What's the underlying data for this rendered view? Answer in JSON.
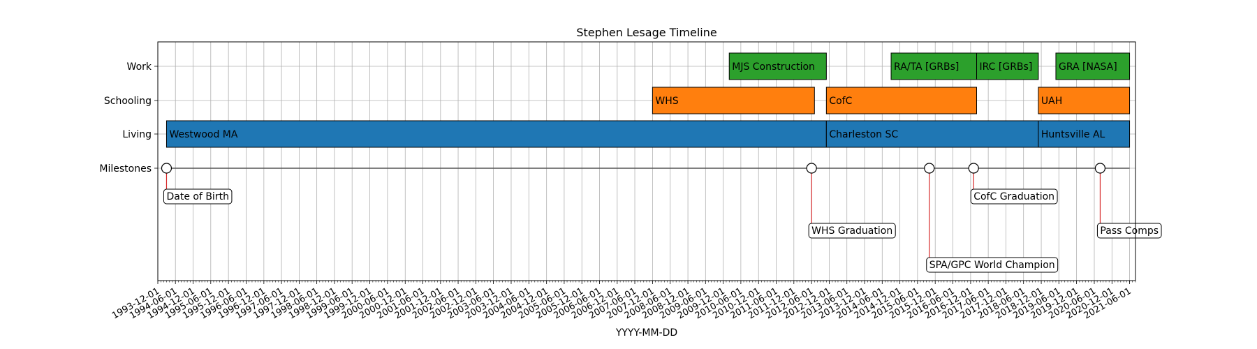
{
  "chart_data": {
    "type": "timeline",
    "title": "Stephen Lesage Timeline",
    "xlabel": "YYYY-MM-DD",
    "ylabel": "",
    "grid": true,
    "xlim": [
      "1993-12-01",
      "2021-08-01"
    ],
    "x_ticks": [
      "1993-12-01",
      "1994-06-01",
      "1994-12-01",
      "1995-06-01",
      "1995-12-01",
      "1996-06-01",
      "1996-12-01",
      "1997-06-01",
      "1997-12-01",
      "1998-06-01",
      "1998-12-01",
      "1999-06-01",
      "1999-12-01",
      "2000-06-01",
      "2000-12-01",
      "2001-06-01",
      "2001-12-01",
      "2002-06-01",
      "2002-12-01",
      "2003-06-01",
      "2003-12-01",
      "2004-06-01",
      "2004-12-01",
      "2005-06-01",
      "2005-12-01",
      "2006-06-01",
      "2006-12-01",
      "2007-06-01",
      "2007-12-01",
      "2008-06-01",
      "2008-12-01",
      "2009-06-01",
      "2009-12-01",
      "2010-06-01",
      "2010-12-01",
      "2011-06-01",
      "2011-12-01",
      "2012-06-01",
      "2012-12-01",
      "2013-06-01",
      "2013-12-01",
      "2014-06-01",
      "2014-12-01",
      "2015-06-01",
      "2015-12-01",
      "2016-06-01",
      "2016-12-01",
      "2017-06-01",
      "2017-12-01",
      "2018-06-01",
      "2018-12-01",
      "2019-06-01",
      "2019-12-01",
      "2020-06-01",
      "2020-12-01",
      "2021-06-01"
    ],
    "rows": [
      "Milestones",
      "Living",
      "Schooling",
      "Work"
    ],
    "colors": {
      "Living": "#1f77b4",
      "Schooling": "#ff7f0e",
      "Work": "#2ca02c",
      "stem": "#d62728",
      "line": "#555555"
    },
    "bars": [
      {
        "row": "Work",
        "label": "MJS Construction",
        "start": "2010-02-01",
        "end": "2012-11-01"
      },
      {
        "row": "Work",
        "label": "RA/TA [GRBs]",
        "start": "2014-09-01",
        "end": "2017-02-01"
      },
      {
        "row": "Work",
        "label": "IRC [GRBs]",
        "start": "2017-02-01",
        "end": "2018-11-01"
      },
      {
        "row": "Work",
        "label": "GRA [NASA]",
        "start": "2019-05-01",
        "end": "2021-06-01"
      },
      {
        "row": "Schooling",
        "label": "WHS",
        "start": "2007-12-01",
        "end": "2012-07-01"
      },
      {
        "row": "Schooling",
        "label": "CofC",
        "start": "2012-11-01",
        "end": "2017-02-01"
      },
      {
        "row": "Schooling",
        "label": "UAH",
        "start": "2018-11-01",
        "end": "2021-06-01"
      },
      {
        "row": "Living",
        "label": "Westwood MA",
        "start": "1994-03-01",
        "end": "2012-11-01"
      },
      {
        "row": "Living",
        "label": "Charleston SC",
        "start": "2012-11-01",
        "end": "2018-11-01"
      },
      {
        "row": "Living",
        "label": "Huntsville AL",
        "start": "2018-11-01",
        "end": "2021-06-01"
      }
    ],
    "milestones": [
      {
        "label": "Date of Birth",
        "date": "1994-03-01",
        "level": 1
      },
      {
        "label": "WHS Graduation",
        "date": "2012-06-01",
        "level": 2
      },
      {
        "label": "SPA/GPC World Champion",
        "date": "2015-10-01",
        "level": 3
      },
      {
        "label": "CofC Graduation",
        "date": "2017-01-01",
        "level": 1
      },
      {
        "label": "Pass Comps",
        "date": "2020-08-01",
        "level": 2
      }
    ]
  }
}
